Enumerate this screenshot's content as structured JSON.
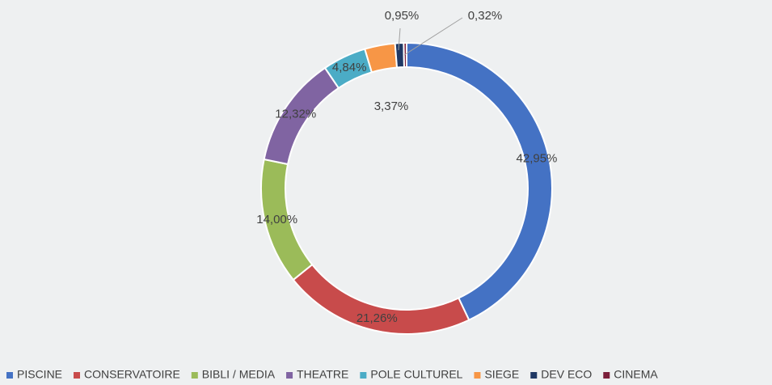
{
  "chart_data": {
    "type": "donut",
    "categories": [
      "PISCINE",
      "CONSERVATOIRE",
      "BIBLI / MEDIA",
      "THEATRE",
      "POLE CULTUREL",
      "SIEGE",
      "DEV ECO",
      "CINEMA"
    ],
    "values": [
      42.95,
      21.26,
      14.0,
      12.32,
      4.84,
      3.37,
      0.95,
      0.32
    ],
    "value_labels": [
      "42,95%",
      "21,26%",
      "14,00%",
      "12,32%",
      "4,84%",
      "3,37%",
      "0,95%",
      "0,32%"
    ],
    "colors": [
      "#4472c4",
      "#c84b4b",
      "#9bbb59",
      "#8064a2",
      "#4bacc6",
      "#f79646",
      "#1f3864",
      "#7b1f3a"
    ],
    "legend": "bottom"
  }
}
